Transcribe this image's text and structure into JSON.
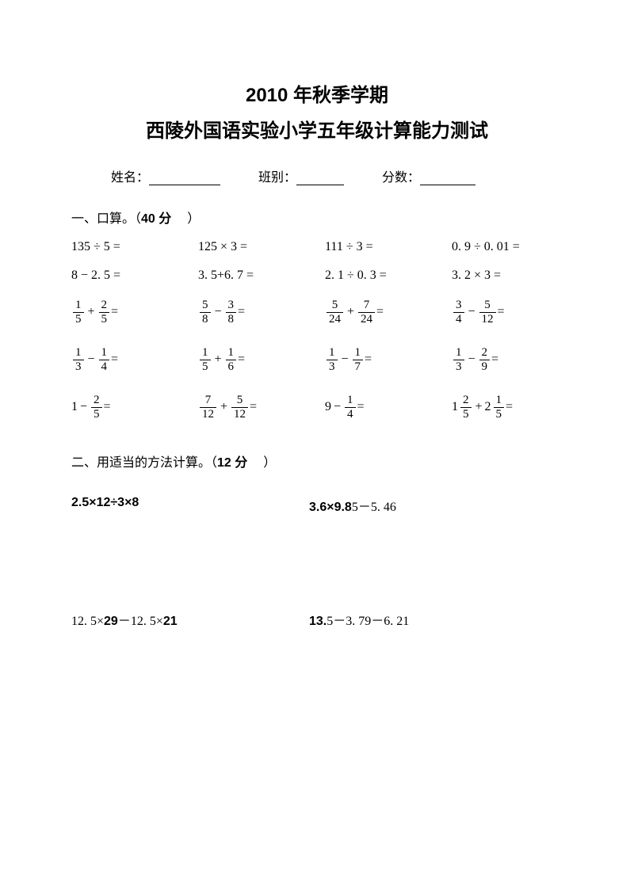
{
  "title1": "2010 年秋季学期",
  "title2": "西陵外国语实验小学五年级计算能力测试",
  "info": {
    "name_label": "姓名：",
    "class_label": "班别：",
    "score_label": "分数："
  },
  "section1": {
    "header_prefix": "一、口算。（",
    "header_points": "40 分",
    "header_suffix": "）",
    "rows": [
      {
        "type": "plain",
        "c1": "135 ÷ 5 =",
        "c2": "125 × 3  =",
        "c3": "111 ÷ 3  =",
        "c4": "0. 9 ÷ 0. 01 ="
      },
      {
        "type": "plain",
        "c1": "8 − 2. 5 =",
        "c2": "3. 5+6. 7 =",
        "c3": "2. 1 ÷ 0. 3 =",
        "c4": "3. 2 × 3   ="
      },
      {
        "type": "frac",
        "c1": {
          "a": {
            "n": "1",
            "d": "5"
          },
          "op": "+",
          "b": {
            "n": "2",
            "d": "5"
          }
        },
        "c2": {
          "a": {
            "n": "5",
            "d": "8"
          },
          "op": "−",
          "b": {
            "n": "3",
            "d": "8"
          }
        },
        "c3": {
          "a": {
            "n": "5",
            "d": "24"
          },
          "op": "+",
          "b": {
            "n": "7",
            "d": "24"
          }
        },
        "c4": {
          "a": {
            "n": "3",
            "d": "4"
          },
          "op": "−",
          "b": {
            "n": "5",
            "d": "12"
          }
        }
      },
      {
        "type": "frac",
        "c1": {
          "a": {
            "n": "1",
            "d": "3"
          },
          "op": "−",
          "b": {
            "n": "1",
            "d": "4"
          }
        },
        "c2": {
          "a": {
            "n": "1",
            "d": "5"
          },
          "op": "+",
          "b": {
            "n": "1",
            "d": "6"
          }
        },
        "c3": {
          "a": {
            "n": "1",
            "d": "3"
          },
          "op": "−",
          "b": {
            "n": "1",
            "d": "7"
          }
        },
        "c4": {
          "a": {
            "n": "1",
            "d": "3"
          },
          "op": "−",
          "b": {
            "n": "2",
            "d": "9"
          }
        }
      },
      {
        "type": "mixed",
        "c1": {
          "whole": "1",
          "op": "−",
          "b": {
            "n": "2",
            "d": "5"
          }
        },
        "c2": {
          "a": {
            "n": "7",
            "d": "12"
          },
          "op": "+",
          "b": {
            "n": "5",
            "d": "12"
          }
        },
        "c3": {
          "whole": "9",
          "op": "−",
          "b": {
            "n": "1",
            "d": "4"
          }
        },
        "c4": {
          "ma": {
            "w": "1",
            "n": "2",
            "d": "5"
          },
          "op": "+",
          "mb": {
            "w": "2",
            "n": "1",
            "d": "5"
          }
        }
      }
    ]
  },
  "section2": {
    "header_prefix": "二、用适当的方法计算。（",
    "header_points": "12 分",
    "header_suffix": "）",
    "rows": [
      {
        "c1_bold": "2.5×12÷3×8",
        "c1_light": "",
        "c2_bold": "3.6×9.8",
        "c2_light": "5－5. 46"
      },
      {
        "c1_light": "12. 5×",
        "c1_bold": "29",
        "c1_light2": "－12. 5×",
        "c1_bold2": "21",
        "c2_bold": "13.",
        "c2_light": "5－3. 79－6. 21"
      }
    ]
  }
}
